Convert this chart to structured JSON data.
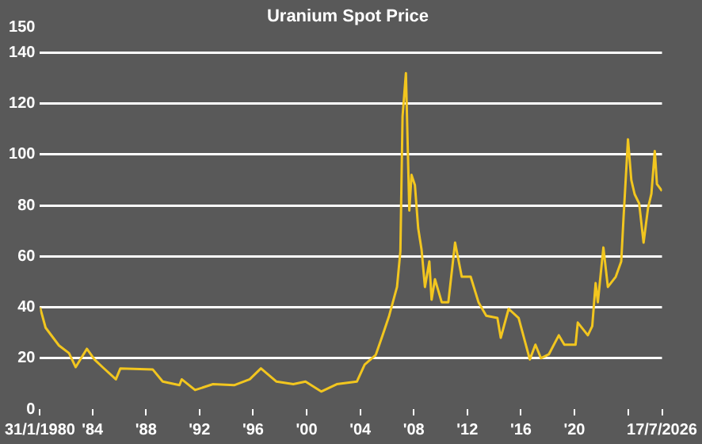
{
  "chart_data": {
    "type": "line",
    "title": "Uranium Spot Price",
    "x": [
      "1980-01-31",
      "1980-07",
      "1981-07",
      "1982-04",
      "1982-10",
      "1983-08",
      "1984-03",
      "1984-10",
      "1985-10",
      "1986-02",
      "1988-07",
      "1989-04",
      "1990-07",
      "1990-09",
      "1991-09",
      "1993-01",
      "1994-08",
      "1995-10",
      "1996-08",
      "1997-10",
      "1999-01",
      "1999-12",
      "2001-02",
      "2002-04",
      "2003-10",
      "2004-05",
      "2005-03",
      "2005-09",
      "2006-03",
      "2006-10",
      "2007-01",
      "2007-03",
      "2007-06",
      "2007-09",
      "2007-11",
      "2008-02",
      "2008-05",
      "2008-08",
      "2008-11",
      "2009-03",
      "2009-05",
      "2009-08",
      "2010-02",
      "2010-08",
      "2011-02",
      "2011-08",
      "2012-04",
      "2012-11",
      "2013-06",
      "2014-04",
      "2014-07",
      "2015-02",
      "2015-11",
      "2016-09",
      "2017-02",
      "2017-07",
      "2018-02",
      "2018-11",
      "2019-04",
      "2020-02",
      "2020-04",
      "2021-01",
      "2021-05",
      "2021-08",
      "2021-10",
      "2022-03",
      "2022-07",
      "2023-02",
      "2023-07",
      "2023-09",
      "2024-01",
      "2024-04",
      "2024-07",
      "2024-11",
      "2025-03",
      "2025-07",
      "2025-10",
      "2026-01",
      "2026-03",
      "2026-07-17"
    ],
    "series": [
      {
        "color": "#f2c61f",
        "values": [
          40,
          32,
          25,
          22,
          16.5,
          23.7,
          19.4,
          16.5,
          11.7,
          16,
          15.6,
          10.8,
          9.4,
          11.7,
          7.5,
          9.8,
          9.4,
          11.7,
          16,
          10.8,
          9.8,
          10.8,
          6.9,
          9.8,
          10.8,
          17.5,
          21.3,
          29,
          36.7,
          48,
          62,
          115,
          132,
          78,
          92,
          88,
          71,
          62.6,
          48,
          58,
          43,
          51,
          42,
          42,
          65.4,
          52,
          52,
          42,
          36.7,
          35.8,
          28,
          39.4,
          35.8,
          19.5,
          25.3,
          20,
          21.5,
          29,
          25.3,
          25.3,
          34,
          29,
          32.6,
          49.5,
          42,
          63.5,
          48,
          52,
          58,
          75,
          106,
          90,
          84.4,
          80.8,
          65.4,
          79,
          84.6,
          101.4,
          88.4,
          85.7
        ]
      }
    ],
    "xlim": [
      "1980-01-31",
      "2026-07-17"
    ],
    "xticks": [
      {
        "value": "1980-01-31",
        "label": "31/1/1980"
      },
      {
        "value": "1984",
        "label": "'84"
      },
      {
        "value": "1988",
        "label": "'88"
      },
      {
        "value": "1992",
        "label": "'92"
      },
      {
        "value": "1996",
        "label": "'96"
      },
      {
        "value": "2000",
        "label": "'00"
      },
      {
        "value": "2004",
        "label": "'04"
      },
      {
        "value": "2008",
        "label": "'08"
      },
      {
        "value": "2012",
        "label": "'12"
      },
      {
        "value": "2016",
        "label": "'16"
      },
      {
        "value": "2020",
        "label": "'20"
      },
      {
        "value": "2024",
        "label": null
      },
      {
        "value": "2026-07-17",
        "label": "17/7/2026"
      }
    ],
    "ylim": [
      0,
      150
    ],
    "yticks": [
      0,
      20,
      40,
      60,
      80,
      100,
      120,
      140,
      150
    ],
    "grid": "y",
    "marker": "none",
    "line_style": "solid"
  }
}
